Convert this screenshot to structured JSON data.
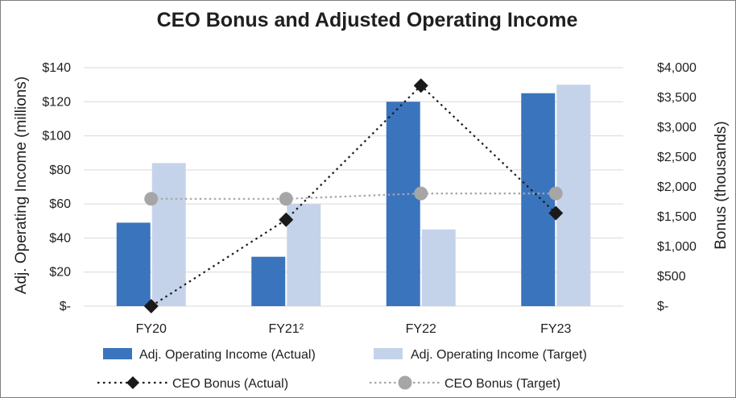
{
  "chart_data": {
    "type": "bar",
    "title": "CEO Bonus and Adjusted Operating Income",
    "categories": [
      "FY20",
      "FY21²",
      "FY22",
      "FY23"
    ],
    "ylabel_left": "Adj. Operating Income (millions)",
    "ylabel_right": "Bonus (thousands)",
    "ylim_left": [
      0,
      140
    ],
    "ylim_right": [
      0,
      4000
    ],
    "yticks_left": [
      "$-",
      "$20",
      "$40",
      "$60",
      "$80",
      "$100",
      "$120",
      "$140"
    ],
    "yticks_right": [
      "$-",
      "$500",
      "$1,000",
      "$1,500",
      "$2,000",
      "$2,500",
      "$3,000",
      "$3,500",
      "$4,000"
    ],
    "grid": true,
    "legend_position": "bottom",
    "series": [
      {
        "name": "Adj. Operating Income (Actual)",
        "kind": "bar",
        "axis": "left",
        "color": "#3a74bd",
        "values": [
          49,
          29,
          120,
          125
        ]
      },
      {
        "name": "Adj. Operating Income (Target)",
        "kind": "bar",
        "axis": "left",
        "color": "#c5d3ea",
        "values": [
          84,
          60,
          45,
          130
        ]
      },
      {
        "name": "CEO Bonus (Actual)",
        "kind": "line",
        "axis": "right",
        "color": "#1a1a1a",
        "marker": "diamond",
        "values": [
          0,
          1450,
          3700,
          1560
        ]
      },
      {
        "name": "CEO Bonus (Target)",
        "kind": "line",
        "axis": "right",
        "color": "#a6a6a6",
        "marker": "circle",
        "values": [
          1800,
          1800,
          1890,
          1890
        ]
      }
    ]
  }
}
